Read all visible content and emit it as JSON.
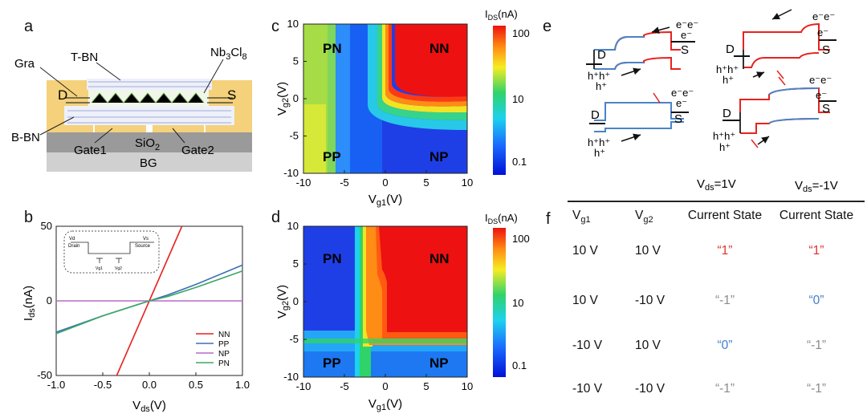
{
  "panels": {
    "a": "a",
    "b": "b",
    "c": "c",
    "d": "d",
    "e": "e",
    "f": "f"
  },
  "colors": {
    "red": "#e6231f",
    "blue": "#4b83c6",
    "gold": "#f4d17a",
    "grey": "#999999",
    "green": "#3aa864",
    "purple": "#b56cc9"
  },
  "panel_a": {
    "labels": {
      "gra": "Gra",
      "tbn": "T-BN",
      "nbcl": "Nb3Cl8",
      "d": "D",
      "s": "S",
      "bbn": "B-BN",
      "gate1": "Gate1",
      "sio2": "SiO2",
      "gate2": "Gate2",
      "bg": "BG"
    }
  },
  "panel_b": {
    "inset": {
      "vd": "Vd",
      "vs": "Vs",
      "drain": "Drain",
      "source": "Source",
      "vg1": "Vg1",
      "vg2": "Vg2"
    }
  },
  "panel_e": {
    "electrons": "e⁻e⁻",
    "electron": "e⁻",
    "holes": "h⁺h⁺",
    "hole": "h⁺",
    "d": "D",
    "s": "S",
    "vds_pos": "Vds=1V",
    "vds_neg": "Vds=-1V"
  },
  "table_f": {
    "headers": [
      "Vg1",
      "Vg2",
      "Current State",
      "Current State"
    ],
    "rows": [
      {
        "vg1": "10 V",
        "vg2": "10 V",
        "s1": "“1”",
        "s1c": "red",
        "s2": "“1”",
        "s2c": "red"
      },
      {
        "vg1": "10 V",
        "vg2": "-10 V",
        "s1": "“-1”",
        "s1c": "grey",
        "s2": "“0”",
        "s2c": "blue"
      },
      {
        "vg1": "-10 V",
        "vg2": "10 V",
        "s1": "“0”",
        "s1c": "blue",
        "s2": "“-1”",
        "s2c": "grey"
      },
      {
        "vg1": "-10 V",
        "vg2": "-10 V",
        "s1": "“-1”",
        "s1c": "grey",
        "s2": "“-1”",
        "s2c": "grey"
      }
    ]
  },
  "chart_data": [
    {
      "type": "line",
      "xlabel": "Vds(V)",
      "ylabel": "Ids(nA)",
      "xlim": [
        -1.0,
        1.0
      ],
      "ylim": [
        -50,
        50
      ],
      "xticks": [
        "-1.0",
        "-0.5",
        "0.0",
        "0.5",
        "1.0"
      ],
      "yticks": [
        "-50",
        "0",
        "50"
      ],
      "legend_position": "bottom-right",
      "series": [
        {
          "name": "NN",
          "color": "#e6231f",
          "x": [
            -0.35,
            0.0,
            0.35
          ],
          "y": [
            -50,
            0,
            50
          ]
        },
        {
          "name": "PP",
          "color": "#3f6fb5",
          "x": [
            -1.0,
            -0.5,
            0.0,
            0.2,
            0.5,
            1.0
          ],
          "y": [
            -21,
            -10,
            0,
            4,
            11,
            24
          ]
        },
        {
          "name": "NP",
          "color": "#b56cc9",
          "x": [
            -1.0,
            -0.5,
            0.0,
            0.5,
            1.0
          ],
          "y": [
            0,
            0,
            0,
            0,
            0
          ]
        },
        {
          "name": "PN",
          "color": "#3aa864",
          "x": [
            -1.0,
            -0.5,
            0.0,
            0.2,
            0.5,
            1.0
          ],
          "y": [
            -22,
            -10,
            0,
            3,
            9,
            20
          ]
        }
      ]
    },
    {
      "type": "heatmap",
      "xlabel": "Vg1(V)",
      "ylabel": "Vg2(V)",
      "colorbar_label": "IDS(nA)",
      "colorbar_ticks": [
        "100",
        "10",
        "0.1"
      ],
      "xlim": [
        -10,
        10
      ],
      "ylim": [
        -10,
        10
      ],
      "xticks": [
        "-10",
        "-5",
        "0",
        "5",
        "10"
      ],
      "yticks": [
        "10",
        "5",
        "0",
        "-5",
        "-10"
      ],
      "quadrants": {
        "tl": "PN",
        "tr": "NN",
        "bl": "PP",
        "br": "NP"
      }
    },
    {
      "type": "heatmap",
      "xlabel": "Vg1(V)",
      "ylabel": "Vg2(V)",
      "colorbar_label": "IDS(nA)",
      "colorbar_ticks": [
        "100",
        "10",
        "0.1"
      ],
      "xlim": [
        -10,
        10
      ],
      "ylim": [
        -10,
        10
      ],
      "xticks": [
        "-10",
        "-5",
        "0",
        "5",
        "10"
      ],
      "yticks": [
        "10",
        "5",
        "0",
        "-5",
        "-10"
      ],
      "quadrants": {
        "tl": "PN",
        "tr": "NN",
        "bl": "PP",
        "br": "NP"
      }
    }
  ]
}
